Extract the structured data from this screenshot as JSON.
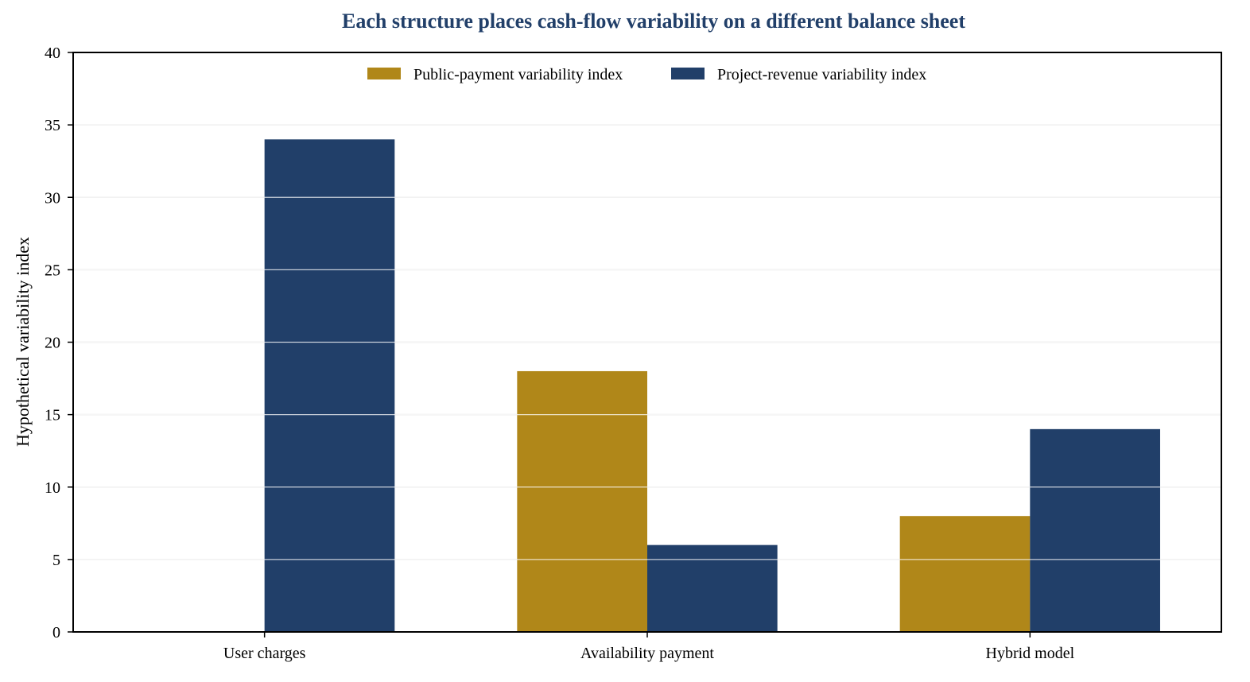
{
  "chart_data": {
    "type": "bar",
    "title": "Each structure places cash-flow variability on a different balance sheet",
    "xlabel": "",
    "ylabel": "Hypothetical variability index",
    "categories": [
      "User charges",
      "Availability payment",
      "Hybrid model"
    ],
    "series": [
      {
        "name": "Public-payment variability index",
        "values": [
          0,
          18,
          8
        ],
        "color": "#b08719"
      },
      {
        "name": "Project-revenue variability index",
        "values": [
          34,
          6,
          14
        ],
        "color": "#213f69"
      }
    ],
    "ylim": [
      0,
      40
    ],
    "yticks": [
      0,
      5,
      10,
      15,
      20,
      25,
      30,
      35,
      40
    ],
    "grid": true,
    "gridlines_drawn_over_bars": true,
    "legend_placement": "top-center",
    "colors": {
      "title": "#213f69",
      "grid": "#d9d9d9",
      "axis": "#000000"
    }
  }
}
